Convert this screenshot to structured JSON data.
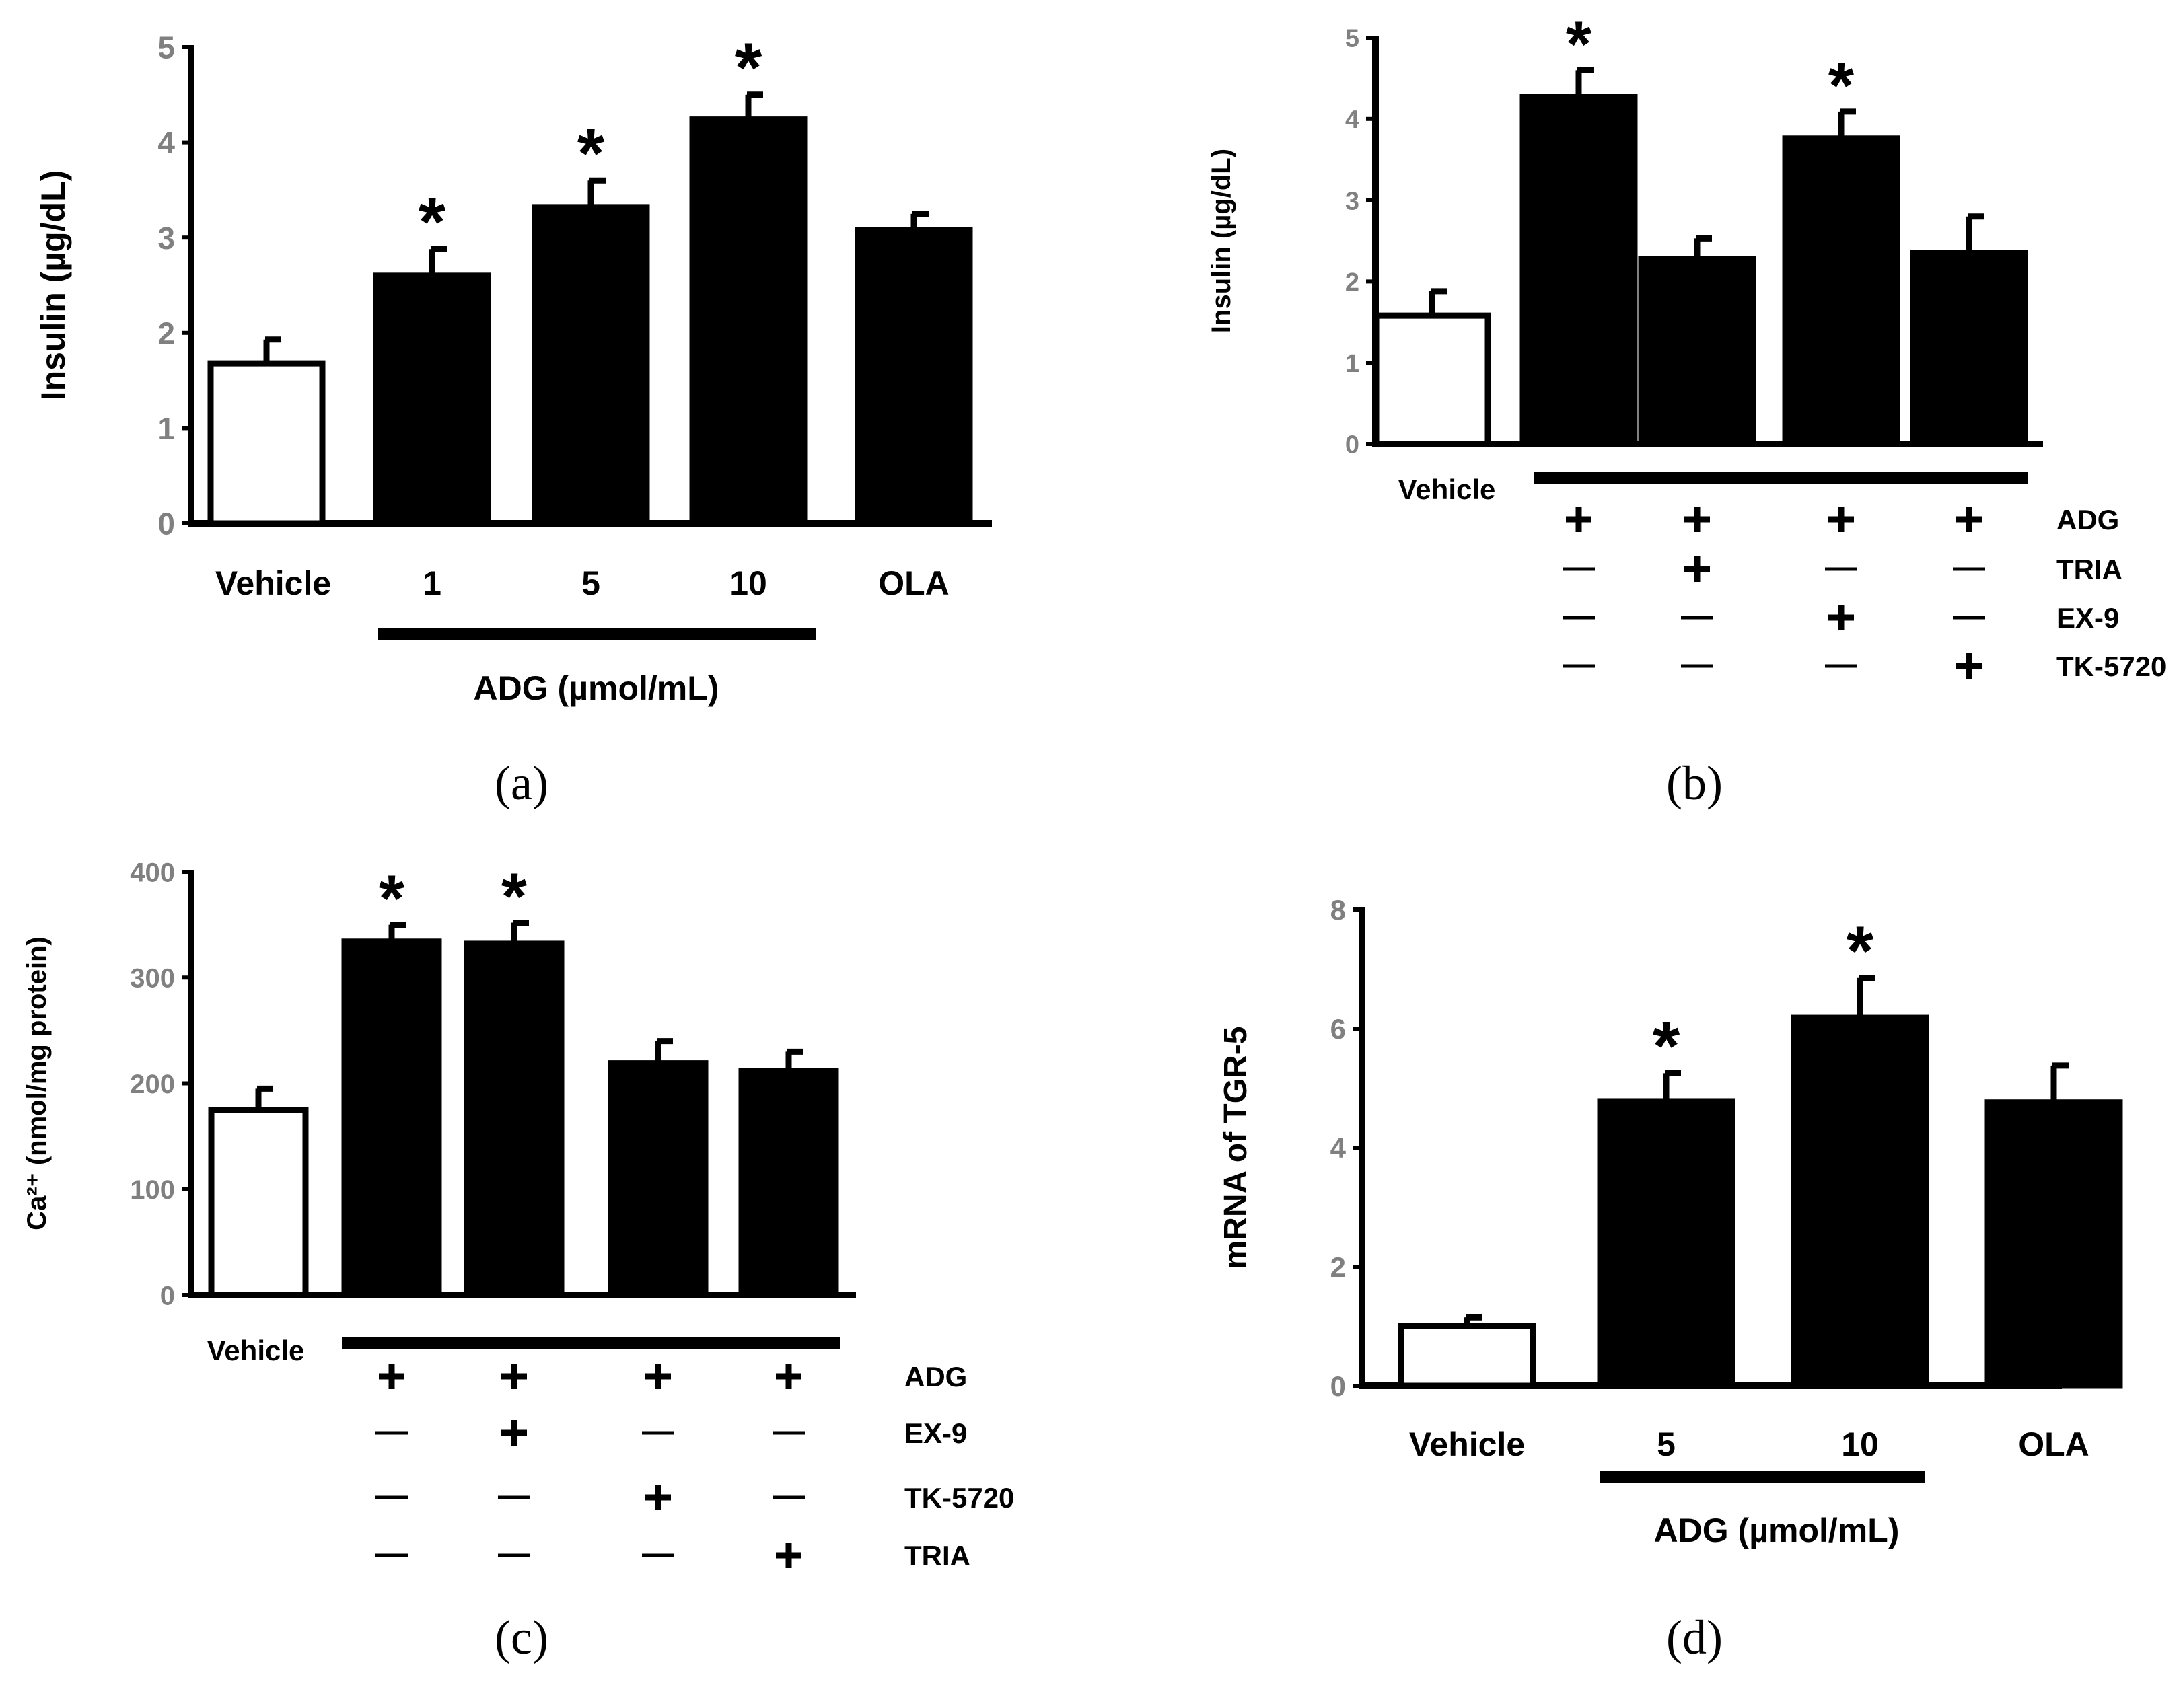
{
  "chart_data": [
    {
      "panel": "(a)",
      "type": "bar",
      "ylabel": "Insulin (µg/dL)",
      "ylim": [
        0,
        5
      ],
      "yticks": [
        "0",
        "1",
        "2",
        "3",
        "4",
        "5"
      ],
      "categories": [
        "Vehicle",
        "1",
        "5",
        "10",
        "OLA"
      ],
      "values": [
        1.68,
        2.6,
        3.32,
        4.24,
        3.08
      ],
      "errors": [
        0.25,
        0.28,
        0.28,
        0.26,
        0.17
      ],
      "fills": [
        "white",
        "black",
        "black",
        "black",
        "black"
      ],
      "significant": [
        false,
        true,
        true,
        true,
        false
      ],
      "star_label": "*",
      "group_label": "ADG (µmol/mL)"
    },
    {
      "panel": "(b)",
      "type": "bar",
      "ylabel": "Insulin (µg/dL)",
      "ylim": [
        0,
        5
      ],
      "yticks": [
        "0",
        "1",
        "2",
        "3",
        "4",
        "5"
      ],
      "categories": [
        "Vehicle",
        "",
        "",
        "",
        ""
      ],
      "values": [
        1.58,
        4.27,
        2.28,
        3.76,
        2.35
      ],
      "errors": [
        0.3,
        0.33,
        0.25,
        0.33,
        0.45
      ],
      "fills": [
        "white",
        "black",
        "black",
        "black",
        "black"
      ],
      "significant": [
        false,
        true,
        false,
        true,
        false
      ],
      "star_label": "*",
      "vehicle_label": "Vehicle",
      "treatments": [
        {
          "name": "ADG",
          "signs": [
            "+",
            "+",
            "+",
            "+"
          ]
        },
        {
          "name": "TRIA",
          "signs": [
            "—",
            "+",
            "—",
            "—"
          ]
        },
        {
          "name": "EX-9",
          "signs": [
            "—",
            "—",
            "+",
            "—"
          ]
        },
        {
          "name": "TK-5720",
          "signs": [
            "—",
            "—",
            "—",
            "+"
          ]
        }
      ]
    },
    {
      "panel": "(c)",
      "type": "bar",
      "ylabel": "Ca²⁺ (nmol/mg protein)",
      "ylim": [
        0,
        400
      ],
      "yticks": [
        "0",
        "100",
        "200",
        "300",
        "400"
      ],
      "categories": [
        "Vehicle",
        "",
        "",
        "",
        ""
      ],
      "values": [
        175,
        334,
        332,
        219,
        212
      ],
      "errors": [
        20,
        16,
        20,
        21,
        18
      ],
      "fills": [
        "white",
        "black",
        "black",
        "black",
        "black"
      ],
      "significant": [
        false,
        true,
        true,
        false,
        false
      ],
      "star_label": "*",
      "vehicle_label": "Vehicle",
      "treatments": [
        {
          "name": "ADG",
          "signs": [
            "+",
            "+",
            "+",
            "+"
          ]
        },
        {
          "name": "EX-9",
          "signs": [
            "—",
            "+",
            "—",
            "—"
          ]
        },
        {
          "name": "TK-5720",
          "signs": [
            "—",
            "—",
            "+",
            "—"
          ]
        },
        {
          "name": "TRIA",
          "signs": [
            "—",
            "—",
            "—",
            "+"
          ]
        }
      ]
    },
    {
      "panel": "(d)",
      "type": "bar",
      "ylabel": "mRNA of TGR-5",
      "ylim": [
        0,
        8
      ],
      "yticks": [
        "0",
        "2",
        "4",
        "6",
        "8"
      ],
      "categories": [
        "Vehicle",
        "5",
        "10",
        "OLA"
      ],
      "values": [
        1.0,
        4.78,
        6.18,
        4.76
      ],
      "errors": [
        0.15,
        0.47,
        0.67,
        0.62
      ],
      "fills": [
        "white",
        "black",
        "black",
        "black"
      ],
      "significant": [
        false,
        true,
        true,
        false
      ],
      "star_label": "*",
      "group_label": "ADG (µmol/mL)"
    }
  ]
}
